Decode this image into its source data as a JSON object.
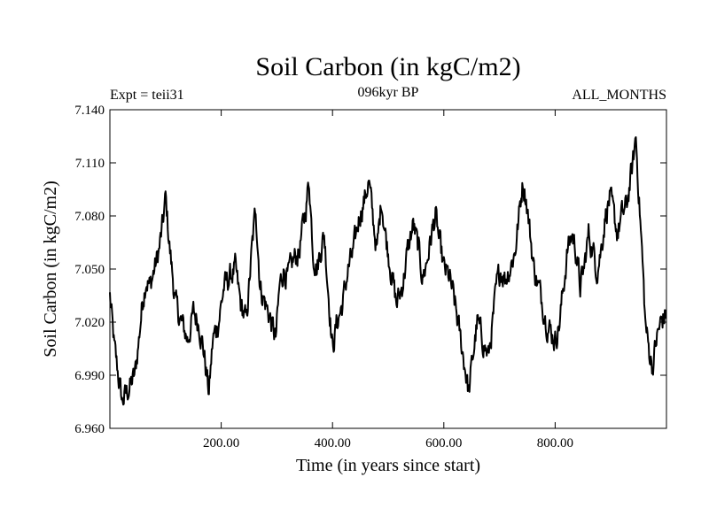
{
  "chart_data": {
    "type": "line",
    "title": "Soil Carbon (in kgC/m2)",
    "subtitle": "096kyr BP",
    "left_label": "Expt = teii31",
    "right_label": "ALL_MONTHS",
    "xlabel": "Time (in years since start)",
    "ylabel": "Soil Carbon (in kgC/m2)",
    "xlim": [
      0,
      1000
    ],
    "ylim": [
      6.96,
      7.14
    ],
    "xticks": [
      200,
      400,
      600,
      800
    ],
    "xtick_labels": [
      "200.00",
      "400.00",
      "600.00",
      "800.00"
    ],
    "yticks": [
      6.96,
      6.99,
      7.02,
      7.05,
      7.08,
      7.11,
      7.14
    ],
    "ytick_labels": [
      "6.960",
      "6.990",
      "7.020",
      "7.050",
      "7.080",
      "7.110",
      "7.140"
    ],
    "grid": false,
    "line_color": "#000000",
    "series": [
      {
        "x": [
          0,
          8,
          15,
          22,
          30,
          38,
          45,
          52,
          58,
          65,
          72,
          80,
          88,
          95,
          100,
          108,
          118,
          128,
          140,
          150,
          160,
          168,
          178,
          185,
          195,
          205,
          215,
          225,
          235,
          245,
          255,
          262,
          270,
          280,
          290,
          298,
          305,
          312,
          320,
          330,
          340,
          350,
          358,
          365,
          372,
          378,
          385,
          392,
          400,
          408,
          418,
          428,
          438,
          448,
          458,
          465,
          472,
          480,
          488,
          495,
          505,
          515,
          525,
          535,
          545,
          555,
          562,
          570,
          578,
          585,
          592,
          600,
          610,
          620,
          630,
          638,
          645,
          652,
          660,
          670,
          680,
          688,
          695,
          702,
          710,
          718,
          728,
          735,
          742,
          748,
          755,
          762,
          770,
          778,
          785,
          792,
          800,
          808,
          815,
          822,
          830,
          838,
          845,
          852,
          860,
          868,
          875,
          882,
          890,
          898,
          905,
          912,
          920,
          928,
          935,
          940,
          945,
          950,
          956,
          962,
          968,
          975,
          982,
          990,
          1000
        ],
        "y": [
          7.035,
          7.005,
          6.99,
          6.975,
          6.98,
          6.985,
          6.99,
          7.01,
          7.03,
          7.045,
          7.04,
          7.05,
          7.06,
          7.075,
          7.09,
          7.06,
          7.03,
          7.02,
          7.01,
          7.025,
          7.02,
          7.005,
          6.98,
          7.01,
          7.02,
          7.04,
          7.045,
          7.05,
          7.03,
          7.02,
          7.06,
          7.085,
          7.04,
          7.03,
          7.02,
          7.01,
          7.04,
          7.05,
          7.045,
          7.055,
          7.06,
          7.08,
          7.1,
          7.06,
          7.05,
          7.06,
          7.07,
          7.04,
          7.005,
          7.02,
          7.03,
          7.05,
          7.06,
          7.08,
          7.09,
          7.1,
          7.08,
          7.06,
          7.09,
          7.07,
          7.05,
          7.03,
          7.04,
          7.06,
          7.075,
          7.06,
          7.045,
          7.055,
          7.07,
          7.08,
          7.065,
          7.05,
          7.045,
          7.03,
          7.01,
          6.995,
          6.98,
          7.0,
          7.02,
          7.01,
          7.0,
          7.02,
          7.04,
          7.05,
          7.045,
          7.05,
          7.06,
          7.08,
          7.1,
          7.09,
          7.07,
          7.05,
          7.04,
          7.03,
          7.02,
          7.015,
          7.01,
          7.02,
          7.04,
          7.06,
          7.07,
          7.06,
          7.04,
          7.05,
          7.07,
          7.06,
          7.05,
          7.06,
          7.08,
          7.09,
          7.08,
          7.07,
          7.08,
          7.085,
          7.1,
          7.11,
          7.125,
          7.095,
          7.06,
          7.02,
          7.005,
          6.995,
          7.01,
          7.02,
          7.025
        ]
      }
    ]
  }
}
